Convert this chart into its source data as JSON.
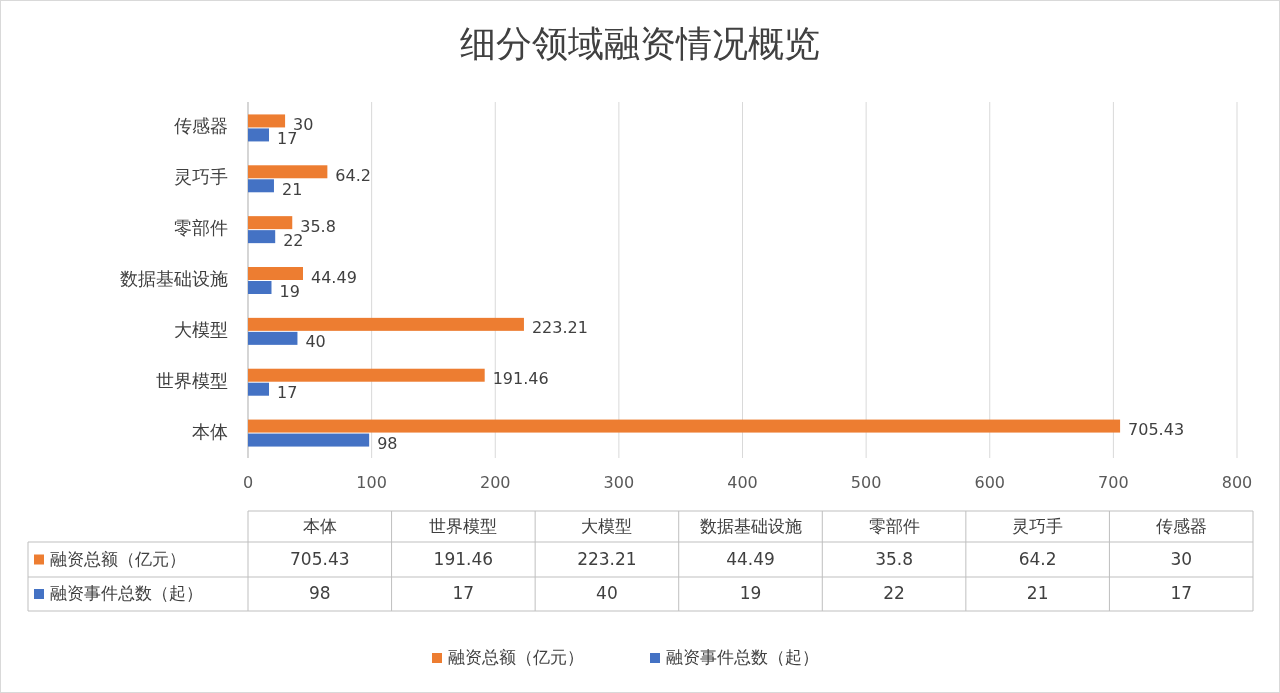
{
  "chart_data": [
    {
      "type": "bar",
      "orientation": "horizontal",
      "title": "细分领域融资情况概览",
      "categories": [
        "传感器",
        "灵巧手",
        "零部件",
        "数据基础设施",
        "大模型",
        "世界模型",
        "本体"
      ],
      "series": [
        {
          "name": "融资总额（亿元）",
          "color": "#ed7d31",
          "values": [
            30,
            64.2,
            35.8,
            44.49,
            223.21,
            191.46,
            705.43
          ]
        },
        {
          "name": "融资事件总数（起）",
          "color": "#4472c4",
          "values": [
            17,
            21,
            22,
            19,
            40,
            17,
            98
          ]
        }
      ],
      "xlim": [
        0,
        800
      ],
      "xticks": [
        0,
        100,
        200,
        300,
        400,
        500,
        600,
        700,
        800
      ],
      "grid": "x",
      "legend": "bottom",
      "data_labels": true
    },
    {
      "type": "other",
      "categories": [
        "本体",
        "世界模型",
        "大模型",
        "数据基础设施",
        "零部件",
        "灵巧手",
        "传感器"
      ],
      "annotations": [
        "融资总额（亿元）",
        "705.43",
        "191.46",
        "223.21",
        "44.49",
        "35.8",
        "64.2",
        "30",
        "融资事件总数（起）",
        "98",
        "17",
        "40",
        "19",
        "22",
        "21",
        "17"
      ]
    }
  ]
}
